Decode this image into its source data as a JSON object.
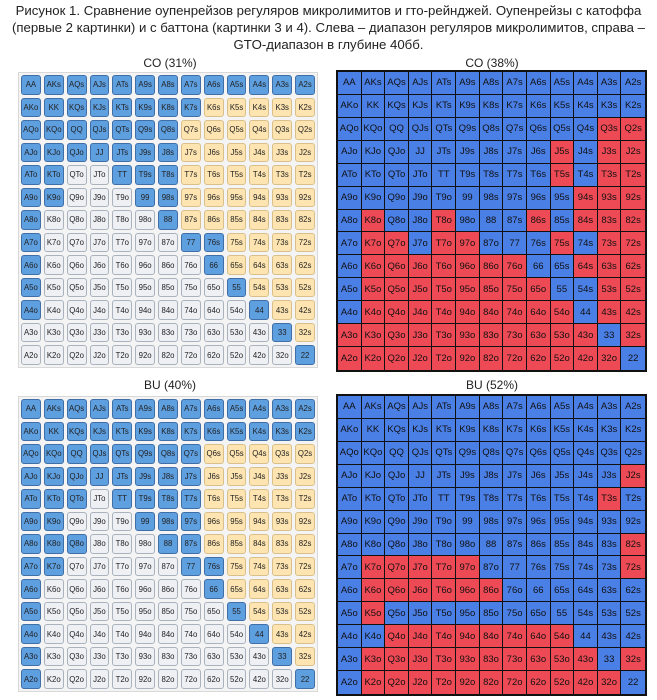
{
  "caption": {
    "line1": "Рисунок 1. Сравнение оупенрейзов регуляров микролимитов и гто-рейнджей. Оупенрейзы с катоффа",
    "line2": "(первые 2 картинки) и с баттона (картинки 3 и 4). Слева – диапазон регуляров микролимитов, справа –",
    "line3": "GTO-диапазон в глубине 40бб."
  },
  "hand_grid": [
    [
      "AA",
      "AKs",
      "AQs",
      "AJs",
      "ATs",
      "A9s",
      "A8s",
      "A7s",
      "A6s",
      "A5s",
      "A4s",
      "A3s",
      "A2s"
    ],
    [
      "AKo",
      "KK",
      "KQs",
      "KJs",
      "KTs",
      "K9s",
      "K8s",
      "K7s",
      "K6s",
      "K5s",
      "K4s",
      "K3s",
      "K2s"
    ],
    [
      "AQo",
      "KQo",
      "QQ",
      "QJs",
      "QTs",
      "Q9s",
      "Q8s",
      "Q7s",
      "Q6s",
      "Q5s",
      "Q4s",
      "Q3s",
      "Q2s"
    ],
    [
      "AJo",
      "KJo",
      "QJo",
      "JJ",
      "JTs",
      "J9s",
      "J8s",
      "J7s",
      "J6s",
      "J5s",
      "J4s",
      "J3s",
      "J2s"
    ],
    [
      "ATo",
      "KTo",
      "QTo",
      "JTo",
      "TT",
      "T9s",
      "T8s",
      "T7s",
      "T6s",
      "T5s",
      "T4s",
      "T3s",
      "T2s"
    ],
    [
      "A9o",
      "K9o",
      "Q9o",
      "J9o",
      "T9o",
      "99",
      "98s",
      "97s",
      "96s",
      "95s",
      "94s",
      "93s",
      "92s"
    ],
    [
      "A8o",
      "K8o",
      "Q8o",
      "J8o",
      "T8o",
      "98o",
      "88",
      "87s",
      "86s",
      "85s",
      "84s",
      "83s",
      "82s"
    ],
    [
      "A7o",
      "K7o",
      "Q7o",
      "J7o",
      "T7o",
      "97o",
      "87o",
      "77",
      "76s",
      "75s",
      "74s",
      "73s",
      "72s"
    ],
    [
      "A6o",
      "K6o",
      "Q6o",
      "J6o",
      "T6o",
      "96o",
      "86o",
      "76o",
      "66",
      "65s",
      "64s",
      "63s",
      "62s"
    ],
    [
      "A5o",
      "K5o",
      "Q5o",
      "J5o",
      "T5o",
      "95o",
      "85o",
      "75o",
      "65o",
      "55",
      "54s",
      "53s",
      "52s"
    ],
    [
      "A4o",
      "K4o",
      "Q4o",
      "J4o",
      "T4o",
      "94o",
      "84o",
      "74o",
      "64o",
      "54o",
      "44",
      "43s",
      "42s"
    ],
    [
      "A3o",
      "K3o",
      "Q3o",
      "J3o",
      "T3o",
      "93o",
      "83o",
      "73o",
      "63o",
      "53o",
      "43o",
      "33",
      "32s"
    ],
    [
      "A2o",
      "K2o",
      "Q2o",
      "J2o",
      "T2o",
      "92o",
      "82o",
      "72o",
      "62o",
      "52o",
      "42o",
      "32o",
      "22"
    ]
  ],
  "charts": [
    {
      "title": "CO (31%)",
      "kind": "micro",
      "cells": [
        "OOOOOOOOOOOOO",
        "OOOOOOOOSSSSS",
        "OOOOOOOSSSSSS",
        "OOOOOOOSSSSSS",
        "OOFFOOOSSSSSS",
        "OOFFFOOSSSSSS",
        "OFFFFFOSSSSSS",
        "OFFFFFFOOSSSS",
        "OFFFFFFFOSSSS",
        "OFFFFFFFFOSSS",
        "OFFFFFFFFFOSS",
        "FFFFFFFFFFFOS",
        "FFFFFFFFFFFFO"
      ]
    },
    {
      "title": "CO (38%)",
      "kind": "gto",
      "cells": [
        "BBBBBBBBBBBBB",
        "BBBBBBBBBBBBB",
        "BBBBBBBBBBBRR",
        "BBBBBBBBBRBRR",
        "BBBBBBBBBRBRR",
        "BBBBBBBBBBRRR",
        "BRBBRBBBRBRRR",
        "BRRBRRBBBRBRR",
        "BRRRRRRRBBRRR",
        "BRRRRRRRRBBRR",
        "BRRRRRRRRRBRR",
        "RRRRRRRRRRRBR",
        "RRRRRRRRRRRRB"
      ]
    },
    {
      "title": "BU (40%)",
      "kind": "micro",
      "cells": [
        "OOOOOOOOOOOOO",
        "OOOOOOOOOOOOO",
        "OOOOOOOOSSSSS",
        "OOOOOOOOSSSSS",
        "OOOFOOOOSSSSS",
        "OOFFFOOOSSSSS",
        "OOOFFFOOSSSSS",
        "OOFFFFFOOSSSS",
        "OFFFFFFFOSSSS",
        "OFFFFFFFFOSSS",
        "OFFFFFFFFFOSS",
        "OFFFFFFFFFFOS",
        "OFFFFFFFFFFFO"
      ]
    },
    {
      "title": "BU (52%)",
      "kind": "gto",
      "cells": [
        "BBBBBBBBBBBBB",
        "BBBBBBBBBBBBB",
        "BBBBBBBBBBBBB",
        "BBBBBBBBBBBBR",
        "BBBBBBBBBBBRB",
        "BBBBBBBBBBBBB",
        "BBBBBBBBBBBBR",
        "BRRRRRBBBBBBR",
        "BRRRRRRBBBBBB",
        "BRBBBBBBBBBBB",
        "BBRRRRRRRRBBB",
        "BRRRRRRRRRRBR",
        "BRRRRRRRRRRRB"
      ]
    }
  ],
  "colors": {
    "micro_open": "#5e9fe0",
    "micro_suited_fold": "#fde4b0",
    "micro_offsuit_fold": "#eef0f4",
    "gto_raise": "#4a7fe6",
    "gto_fold": "#ee4a55"
  }
}
